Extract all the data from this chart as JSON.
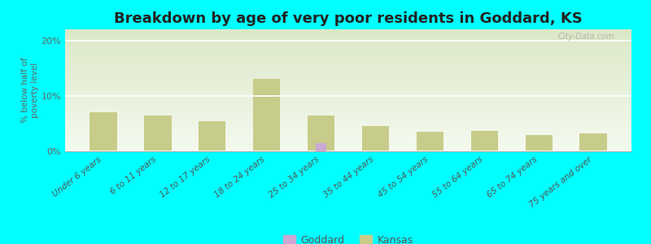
{
  "title": "Breakdown by age of very poor residents in Goddard, KS",
  "ylabel": "% below half of\npoverty level",
  "categories": [
    "Under 6 years",
    "6 to 11 years",
    "12 to 17 years",
    "18 to 24 years",
    "25 to 34 years",
    "35 to 44 years",
    "45 to 54 years",
    "55 to 64 years",
    "65 to 74 years",
    "75 years and over"
  ],
  "goddard_values": [
    0,
    0,
    0,
    0,
    1.5,
    0,
    0,
    0,
    0,
    0
  ],
  "kansas_values": [
    7.0,
    6.5,
    5.5,
    13.0,
    6.5,
    4.5,
    3.5,
    3.7,
    3.0,
    3.2
  ],
  "goddard_color": "#c9a8d4",
  "kansas_color": "#c8cc8a",
  "background_color": "#00ffff",
  "plot_bg_color": "#e8f0d0",
  "ylim": [
    0,
    22
  ],
  "yticks": [
    0,
    10,
    20
  ],
  "ytick_labels": [
    "0%",
    "10%",
    "20%"
  ],
  "title_fontsize": 13,
  "kansas_bar_width": 0.5,
  "goddard_bar_width": 0.2,
  "legend_labels": [
    "Goddard",
    "Kansas"
  ],
  "watermark": "City-Data.com"
}
